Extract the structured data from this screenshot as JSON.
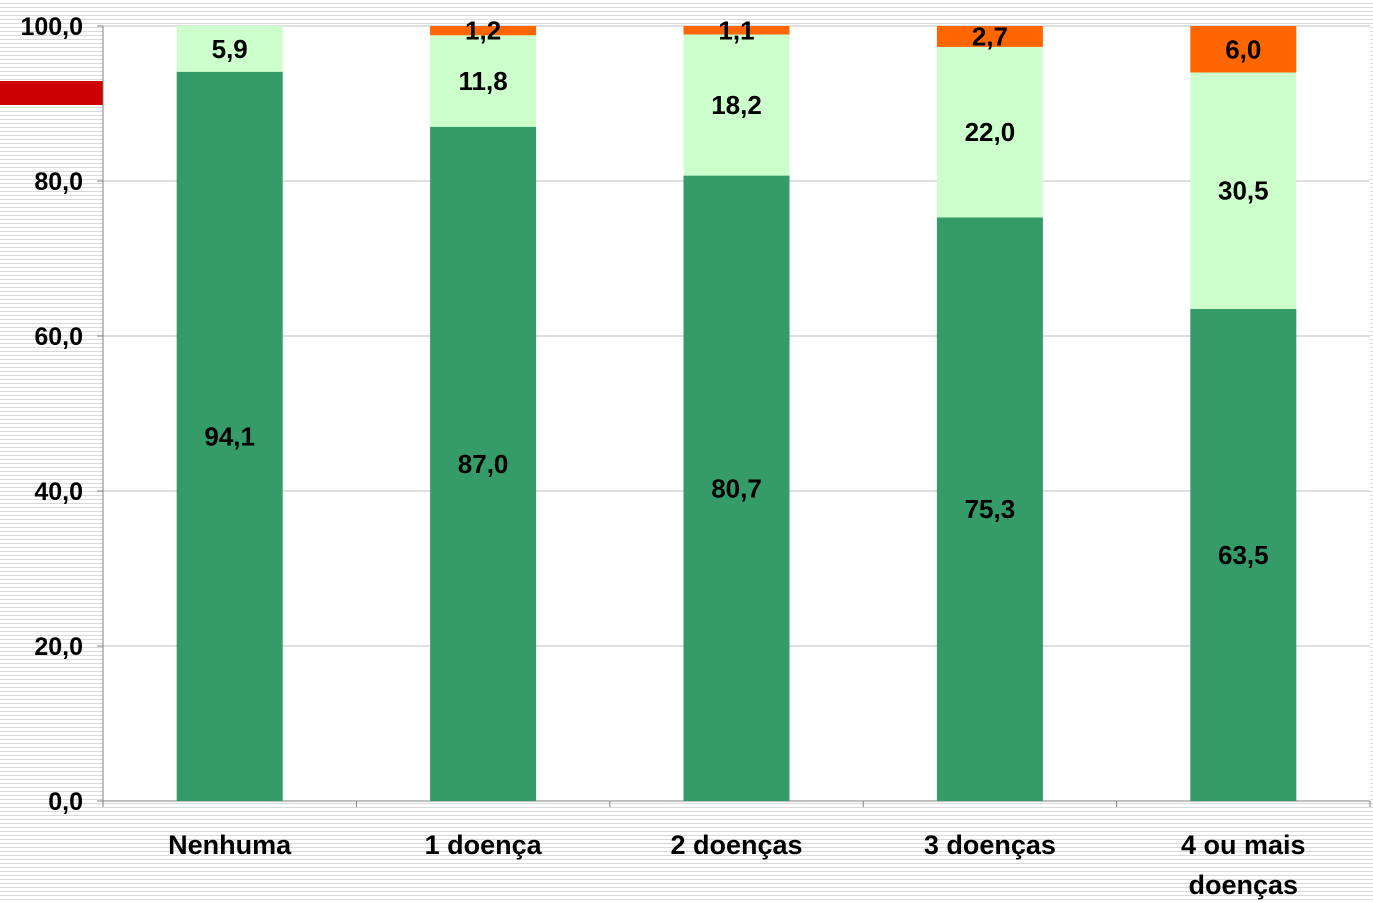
{
  "colors": {
    "series_bottom": "#359b68",
    "series_middle": "#ccffcc",
    "series_top": "#ff6600",
    "marker": "#cc0000"
  },
  "chart_data": {
    "type": "bar",
    "stacked": true,
    "title": "",
    "xlabel": "",
    "ylabel": "",
    "categories": [
      "Nenhuma",
      "1 doença",
      "2 doenças",
      "3 doenças",
      "4 ou mais doenças"
    ],
    "series": [
      {
        "values": [
          94.1,
          87.0,
          80.7,
          75.3,
          63.5
        ],
        "labels": [
          "94,1",
          "87,0",
          "80,7",
          "75,3",
          "63,5"
        ]
      },
      {
        "values": [
          5.9,
          11.8,
          18.2,
          22.0,
          30.5
        ],
        "labels": [
          "5,9",
          "11,8",
          "18,2",
          "22,0",
          "30,5"
        ]
      },
      {
        "values": [
          0,
          1.2,
          1.1,
          2.7,
          6.0
        ],
        "labels": [
          "",
          "1,2",
          "1,1",
          "2,7",
          "6,0"
        ]
      }
    ],
    "ylim": [
      0,
      100
    ],
    "yticks": [
      0,
      20,
      40,
      60,
      80,
      100
    ],
    "ytick_labels": [
      "0,0",
      "20,0",
      "40,0",
      "60,0",
      "80,0",
      "100,0"
    ],
    "grid": true,
    "legend": "none"
  }
}
